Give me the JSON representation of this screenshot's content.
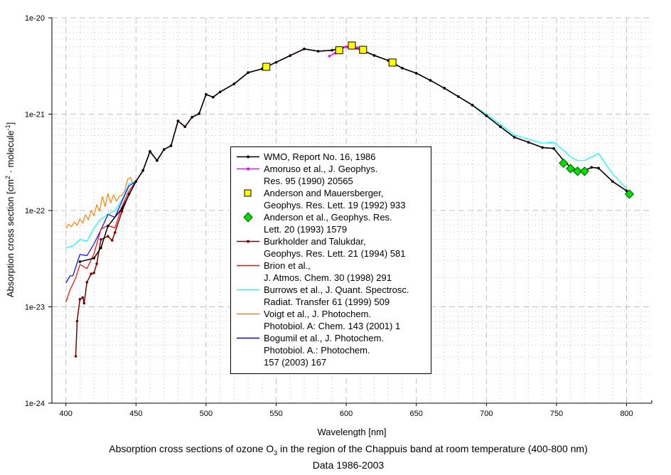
{
  "chart_data": {
    "type": "line",
    "title_parts": [
      "Absorption cross sections of ozone O",
      "3",
      " in the region of the Chappuis band at room temperature (400-800 nm)"
    ],
    "subtitle": "Data 1986-2003",
    "xlabel": "Wavelength [nm]",
    "ylabel_parts": [
      "Absorption cross section [cm",
      "2",
      " · molecule",
      "-1",
      "]"
    ],
    "xlim": [
      390,
      818
    ],
    "ylim": [
      1e-24,
      1e-20
    ],
    "yscale": "log",
    "x_ticks": [
      400,
      450,
      500,
      550,
      600,
      650,
      700,
      750,
      800
    ],
    "y_ticks": [
      1e-20,
      1e-21,
      1e-22,
      1e-23,
      1e-24
    ],
    "y_tick_labels": [
      "1e-20",
      "1e-21",
      "1e-22",
      "1e-23",
      "1e-24"
    ],
    "grid": true,
    "legend_position": "center",
    "main_curve": {
      "x": [
        450,
        455,
        460,
        465,
        470,
        475,
        480,
        485,
        490,
        495,
        500,
        505,
        510,
        520,
        530,
        540,
        550,
        560,
        570,
        580,
        590,
        600,
        610,
        620,
        630,
        640,
        650,
        660,
        670,
        680,
        690,
        700,
        710,
        720,
        730,
        740,
        748,
        755,
        760,
        765,
        770,
        775,
        780,
        790,
        800
      ],
      "y": [
        2e-22,
        2.6e-22,
        4.1e-22,
        3.3e-22,
        4.3e-22,
        4.7e-22,
        8.5e-22,
        7.4e-22,
        9.3e-22,
        1.01e-21,
        1.6e-21,
        1.5e-21,
        1.7e-21,
        2.06e-21,
        2.7e-21,
        2.95e-21,
        3.45e-21,
        4.05e-21,
        4.75e-21,
        4.5e-21,
        4.6e-21,
        5e-21,
        4.7e-21,
        4.06e-21,
        3.6e-21,
        3e-21,
        2.66e-21,
        2.24e-21,
        1.86e-21,
        1.52e-21,
        1.24e-21,
        9.6e-22,
        7.4e-22,
        5.75e-22,
        5.1e-22,
        4.5e-22,
        4.4e-22,
        3.3e-22,
        2.8e-22,
        2.6e-22,
        2.6e-22,
        2.8e-22,
        2.75e-22,
        2e-22,
        1.6e-22
      ]
    },
    "series": [
      {
        "name": "Voigt et al., J. Photochem. Photobiol. A: Chem. 143 (2001) 1",
        "color": "#ff8000",
        "kind": "line",
        "use_main": true,
        "x": [
          400,
          402,
          404,
          406,
          408,
          410,
          412,
          414,
          416,
          418,
          420,
          422,
          424,
          426,
          428,
          430,
          432,
          434,
          436,
          438,
          440,
          442,
          444,
          446,
          448
        ],
        "y": [
          6.5e-23,
          7.2e-23,
          6.8e-23,
          7.6e-23,
          7e-23,
          8.2e-23,
          7.4e-23,
          9e-23,
          8e-23,
          1e-22,
          8.8e-23,
          1.15e-22,
          9.8e-23,
          1.4e-22,
          1.1e-22,
          1.5e-22,
          1.2e-22,
          1.45e-22,
          1.25e-22,
          1.4e-22,
          1.45e-22,
          1.6e-22,
          2.1e-22,
          2.2e-22,
          1.9e-22
        ]
      },
      {
        "name": "Burrows et al., J. Quant. Spectrosc. Radiat. Transfer 61 (1999) 509",
        "color": "#00ffff",
        "kind": "line",
        "use_main": true,
        "x": [
          400,
          405,
          410,
          415,
          420,
          425,
          430,
          435,
          440,
          445
        ],
        "y": [
          4.1e-23,
          4.3e-23,
          5e-23,
          4.8e-23,
          6.6e-23,
          8.2e-23,
          9.1e-23,
          1e-22,
          1.3e-22,
          1.9e-22
        ],
        "main_overrides": {
          "700": 1e-21,
          "710": 7.8e-22,
          "720": 6.1e-22,
          "730": 5.5e-22,
          "740": 5e-22,
          "748": 5.1e-22,
          "755": 4.2e-22,
          "760": 3.6e-22,
          "765": 3.3e-22,
          "770": 3.3e-22,
          "775": 3.6e-22,
          "780": 3.9e-22,
          "790": 2.4e-22,
          "800": 1.7e-22
        }
      },
      {
        "name": "Bogumil et al., J. Photochem. Photobiol. A.: Photochem. 157 (2003) 167",
        "color": "#0000ff",
        "kind": "line",
        "use_main": true,
        "x": [
          400,
          403,
          405,
          410,
          415,
          420,
          425,
          430,
          435,
          440,
          445
        ],
        "y": [
          1.77e-23,
          2.1e-23,
          2.1e-23,
          3.5e-23,
          3.4e-23,
          4.5e-23,
          6.3e-23,
          9.1e-23,
          8.5e-23,
          1.25e-22,
          1.8e-22
        ]
      },
      {
        "name": "Brion et al., J. Atmos. Chem. 30 (1998) 291",
        "color": "#ff0000",
        "kind": "line",
        "use_main": true,
        "x": [
          400,
          403,
          407,
          410,
          415,
          420,
          425,
          430,
          435,
          440,
          445
        ],
        "y": [
          1.12e-23,
          1.5e-23,
          2e-23,
          2.75e-23,
          2.5e-23,
          3.55e-23,
          6.4e-23,
          7e-23,
          6.6e-23,
          1.1e-22,
          1.6e-22
        ]
      },
      {
        "name": "Burkholder and Talukdar, Geophys. Res. Lett. 21 (1994) 581",
        "color": "#800000",
        "kind": "line-marker",
        "use_main": true,
        "x": [
          407,
          408,
          410,
          412,
          413,
          415,
          418,
          420,
          422,
          425,
          430,
          433,
          435,
          440,
          445
        ],
        "y": [
          3.07e-24,
          7.1e-24,
          1.2e-23,
          1.25e-23,
          1.09e-23,
          1.8e-23,
          2.2e-23,
          2.25e-23,
          2.8e-23,
          5e-23,
          5.4e-23,
          4.9e-23,
          5.9e-23,
          9.8e-23,
          1.48e-22
        ]
      },
      {
        "name": "WMO, Report No. 16, 1986",
        "color": "#000000",
        "kind": "line-marker",
        "use_main": true,
        "x": [
          410,
          420,
          425,
          430,
          440
        ],
        "y": [
          2.94e-23,
          3.2e-23,
          4.1e-23,
          6.9e-23,
          1.05e-22
        ]
      },
      {
        "name": "Amoruso et al., J. Geophys. Res. 95 (1990) 20565",
        "color": "#ff00ff",
        "kind": "line-marker",
        "use_main": false,
        "x": [
          588,
          592,
          596,
          600,
          604,
          608,
          612
        ],
        "y": [
          4e-21,
          4.3e-21,
          4.7e-21,
          5e-21,
          5.1e-21,
          4.9e-21,
          4.6e-21
        ]
      },
      {
        "name": "Anderson and Mauersberger, Geophys. Res. Lett. 19 (1992) 933",
        "color": "#ffff00",
        "kind": "square",
        "x": [
          543,
          595,
          604,
          612,
          633
        ],
        "y": [
          3.1e-21,
          4.6e-21,
          5.15e-21,
          4.65e-21,
          3.43e-21
        ]
      },
      {
        "name": "Anderson et al., Geophys. Res. Lett. 20 (1993) 1579",
        "color": "#00dd00",
        "kind": "diamond",
        "x": [
          755,
          760,
          765,
          770,
          802
        ],
        "y": [
          3.1e-22,
          2.72e-22,
          2.55e-22,
          2.55e-22,
          1.48e-22
        ]
      }
    ]
  },
  "legend": [
    {
      "lines": [
        " WMO, Report No. 16, 1986"
      ],
      "color": "#000000",
      "kind": "line-marker"
    },
    {
      "lines": [
        "Amoruso et al., J. Geophys.",
        "Res. 95 (1990) 20565"
      ],
      "color": "#ff00ff",
      "kind": "line-marker"
    },
    {
      "lines": [
        "Anderson and Mauersberger,",
        "Geophys. Res. Lett. 19 (1992) 933"
      ],
      "color": "#ffff00",
      "kind": "square"
    },
    {
      "lines": [
        "Anderson et al., Geophys. Res.",
        "Lett. 20 (1993) 1579"
      ],
      "color": "#00dd00",
      "kind": "diamond"
    },
    {
      "lines": [
        "Burkholder and Talukdar,",
        "Geophys. Res. Lett. 21 (1994) 581"
      ],
      "color": "#800000",
      "kind": "line-marker"
    },
    {
      "lines": [
        "Brion et al.,",
        "J. Atmos. Chem. 30 (1998) 291"
      ],
      "color": "#ff0000",
      "kind": "line"
    },
    {
      "lines": [
        "Burrows et al., J. Quant. Spectrosc.",
        "Radiat. Transfer 61 (1999) 509"
      ],
      "color": "#00ffff",
      "kind": "line"
    },
    {
      "lines": [
        "Voigt et al., J. Photochem.",
        "Photobiol. A: Chem. 143 (2001) 1"
      ],
      "color": "#ff8000",
      "kind": "line"
    },
    {
      "lines": [
        "Bogumil et al., J. Photochem.",
        "Photobiol. A.: Photochem.",
        "157 (2003) 167"
      ],
      "color": "#0000ff",
      "kind": "line"
    }
  ]
}
